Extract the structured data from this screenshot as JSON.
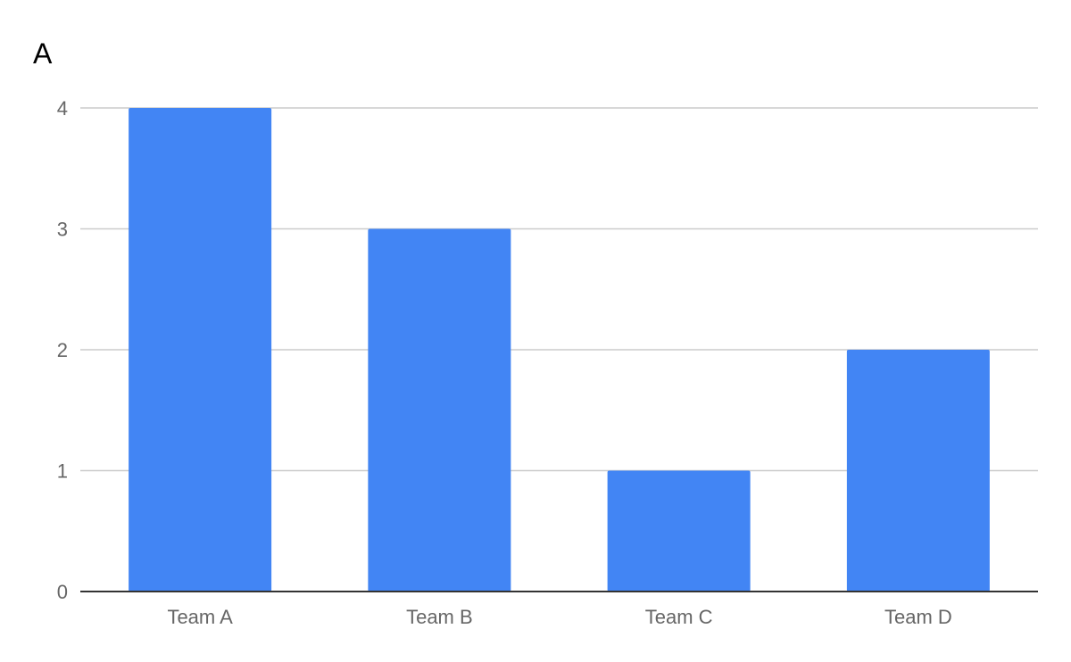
{
  "chart_data": {
    "type": "bar",
    "title": "A",
    "categories": [
      "Team A",
      "Team B",
      "Team C",
      "Team D"
    ],
    "series": [
      {
        "values": [
          4,
          3,
          1,
          2
        ]
      }
    ],
    "ylim": [
      0,
      4
    ],
    "yticks": [
      "0",
      "1",
      "2",
      "3",
      "4"
    ],
    "xlabel": "",
    "ylabel": "",
    "grid": true,
    "legend": "none",
    "colors": {
      "bar": "#4285f4",
      "grid": "#cccccc",
      "axis": "#333333",
      "tick_text": "#666666",
      "title": "#000000"
    }
  }
}
